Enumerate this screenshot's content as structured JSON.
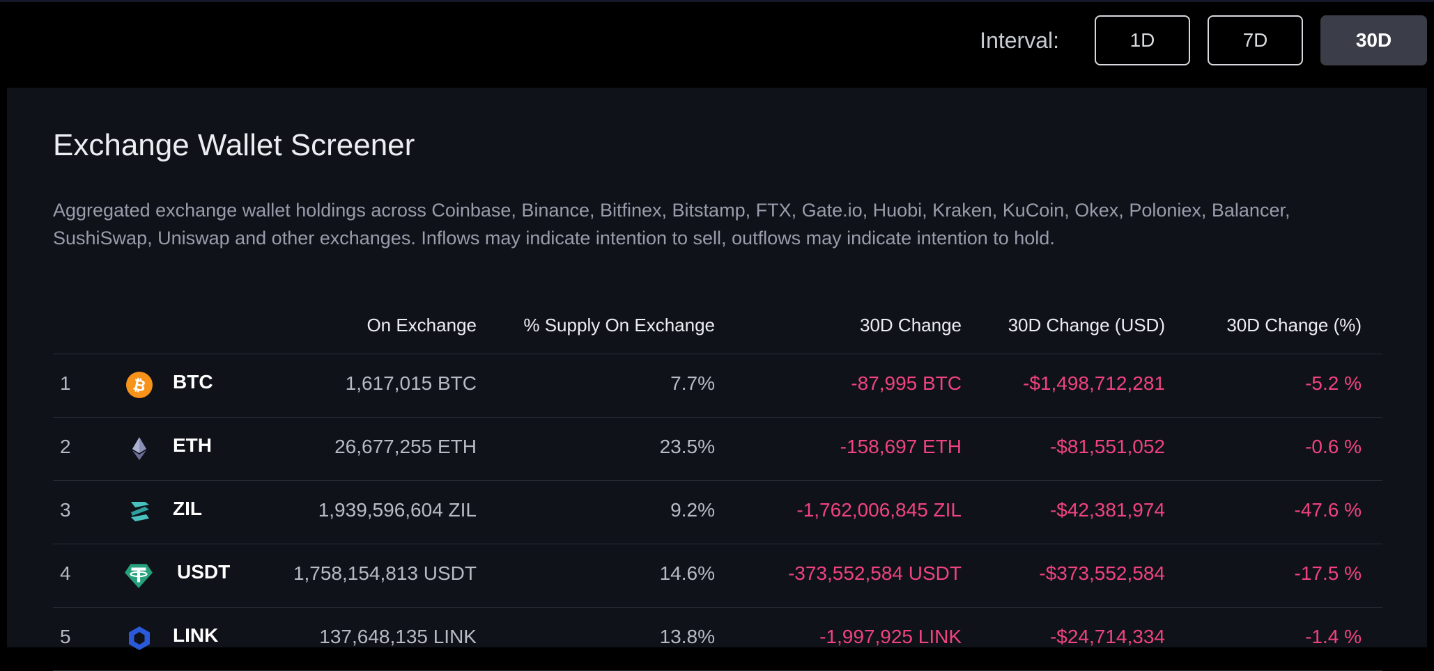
{
  "interval": {
    "label": "Interval:",
    "options": [
      "1D",
      "7D",
      "30D"
    ],
    "selected": "30D"
  },
  "screener": {
    "title": "Exchange Wallet Screener",
    "description": "Aggregated exchange wallet holdings across Coinbase, Binance, Bitfinex, Bitstamp, FTX, Gate.io, Huobi, Kraken, KuCoin, Okex, Poloniex, Balancer, SushiSwap, Uniswap and other exchanges. Inflows may indicate intention to sell, outflows may indicate intention to hold."
  },
  "table": {
    "headers": [
      "On Exchange",
      "% Supply On Exchange",
      "30D Change",
      "30D Change (USD)",
      "30D Change (%)"
    ],
    "rows": [
      {
        "rank": "1",
        "symbol": "BTC",
        "icon": "bitcoin-icon",
        "on_exchange": "1,617,015 BTC",
        "supply_pct": "7.7%",
        "change": "-87,995 BTC",
        "change_usd": "-$1,498,712,281",
        "change_pct": "-5.2 %"
      },
      {
        "rank": "2",
        "symbol": "ETH",
        "icon": "ethereum-icon",
        "on_exchange": "26,677,255 ETH",
        "supply_pct": "23.5%",
        "change": "-158,697 ETH",
        "change_usd": "-$81,551,052",
        "change_pct": "-0.6 %"
      },
      {
        "rank": "3",
        "symbol": "ZIL",
        "icon": "zilliqa-icon",
        "on_exchange": "1,939,596,604 ZIL",
        "supply_pct": "9.2%",
        "change": "-1,762,006,845 ZIL",
        "change_usd": "-$42,381,974",
        "change_pct": "-47.6 %"
      },
      {
        "rank": "4",
        "symbol": "USDT",
        "icon": "tether-icon",
        "on_exchange": "1,758,154,813 USDT",
        "supply_pct": "14.6%",
        "change": "-373,552,584 USDT",
        "change_usd": "-$373,552,584",
        "change_pct": "-17.5 %"
      },
      {
        "rank": "5",
        "symbol": "LINK",
        "icon": "chainlink-icon",
        "on_exchange": "137,648,135 LINK",
        "supply_pct": "13.8%",
        "change": "-1,997,925 LINK",
        "change_usd": "-$24,714,334",
        "change_pct": "-1.4 %"
      }
    ]
  },
  "colors": {
    "negative": "#f0437f",
    "card_bg": "#10121a",
    "btc": "#f7931a",
    "zil": "#49c1bf",
    "usdt": "#26a17b",
    "link": "#2a5ada"
  }
}
